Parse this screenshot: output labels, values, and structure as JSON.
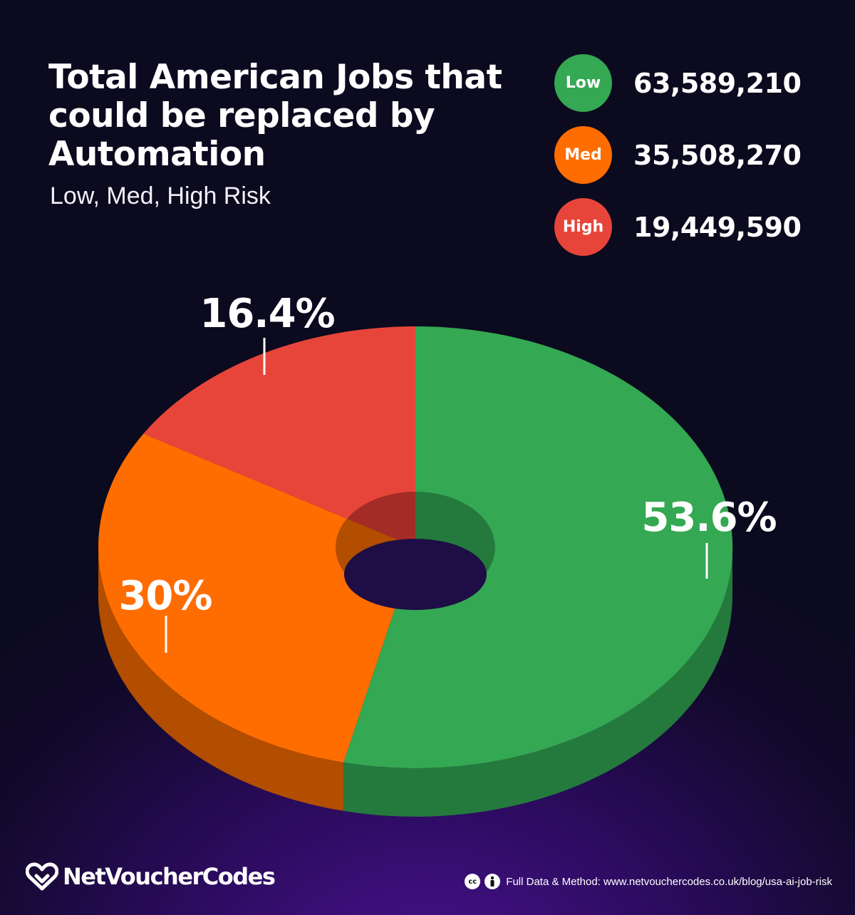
{
  "title": "Total American Jobs that could be replaced by Automation",
  "subtitle": "Low, Med, High Risk",
  "legend": [
    {
      "label": "Low",
      "value": "63,589,210",
      "color": "#34a853"
    },
    {
      "label": "Med",
      "value": "35,508,270",
      "color": "#ff6d00"
    },
    {
      "label": "High",
      "value": "19,449,590",
      "color": "#e8453a"
    }
  ],
  "chart_data": {
    "type": "pie",
    "title": "Total American Jobs that could be replaced by Automation",
    "subtitle": "Low, Med, High Risk",
    "categories": [
      "Low",
      "Med",
      "High"
    ],
    "values": [
      63589210,
      35508270,
      19449590
    ],
    "percent_labels": [
      "53.6%",
      "30%",
      "16.4%"
    ],
    "colors": [
      "#34a853",
      "#ff6d00",
      "#e8453a"
    ],
    "side_colors": [
      "#247a3c",
      "#b34d00",
      "#a32c27"
    ],
    "style": "3d-donut",
    "legend_placement": "top-right"
  },
  "branding": {
    "logo_text": "NetVoucherCodes"
  },
  "footer": {
    "license_icons": [
      "cc-icon",
      "attribution-icon"
    ],
    "license_label": "cc",
    "source_text": "Full Data & Method: www.netvouchercodes.co.uk/blog/usa-ai-job-risk"
  }
}
